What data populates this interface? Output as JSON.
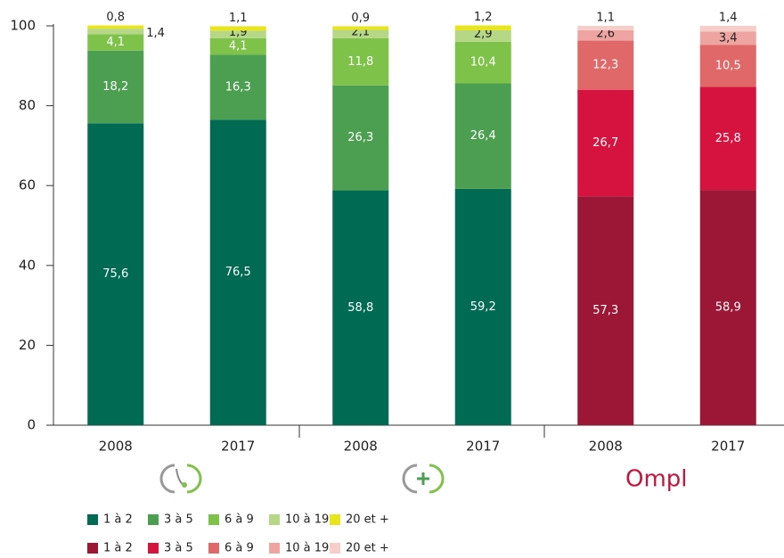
{
  "chart_data": {
    "type": "stacked_bar",
    "categories": [
      "2008",
      "2017",
      "2008",
      "2017",
      "2008",
      "2017"
    ],
    "logo": "Ompl",
    "ylim": [
      0,
      100
    ],
    "yticks": [
      0,
      20,
      40,
      60,
      80,
      100
    ],
    "series": [
      {
        "name": "1 à 2",
        "color": "#006b52",
        "values": [
          75.6,
          76.5,
          58.8,
          59.2,
          null,
          null
        ],
        "value_labels": [
          "75,6",
          "76,5",
          "58,8",
          "59,2",
          null,
          null
        ]
      },
      {
        "name": "3 à 5",
        "color": "#4c9f50",
        "values": [
          18.2,
          16.3,
          26.3,
          26.4,
          null,
          null
        ],
        "value_labels": [
          "18,2",
          "16,3",
          "26,3",
          "26,4",
          null,
          null
        ]
      },
      {
        "name": "6 à 9",
        "color": "#7fc24a",
        "values": [
          4.1,
          4.1,
          11.8,
          10.4,
          null,
          null
        ],
        "value_labels": [
          "4,1",
          "4,1",
          "11,8",
          "10,4",
          null,
          null
        ]
      },
      {
        "name": "10 à 19",
        "color": "#b6d886",
        "values": [
          1.4,
          1.9,
          2.1,
          2.9,
          null,
          null
        ],
        "value_labels": [
          "1,4",
          "1,9",
          "2,1",
          "2,9",
          null,
          null
        ]
      },
      {
        "name": "20 et +",
        "color": "#e8e51c",
        "values": [
          0.8,
          1.1,
          0.9,
          1.2,
          null,
          null
        ],
        "value_labels": [
          "0,8",
          "1,1",
          "0,9",
          "1,2",
          null,
          null
        ]
      },
      {
        "name": "1 à 2",
        "color": "#9c1636",
        "values": [
          null,
          null,
          null,
          null,
          57.3,
          58.9
        ],
        "value_labels": [
          null,
          null,
          null,
          null,
          "57,3",
          "58,9"
        ]
      },
      {
        "name": "3 à 5",
        "color": "#d6123f",
        "values": [
          null,
          null,
          null,
          null,
          26.7,
          25.8
        ],
        "value_labels": [
          null,
          null,
          null,
          null,
          "26,7",
          "25,8"
        ]
      },
      {
        "name": "6 à 9",
        "color": "#e06868",
        "values": [
          null,
          null,
          null,
          null,
          12.3,
          10.5
        ],
        "value_labels": [
          null,
          null,
          null,
          null,
          "12,3",
          "10,5"
        ]
      },
      {
        "name": "10 à 19",
        "color": "#eea4a0",
        "values": [
          null,
          null,
          null,
          null,
          2.6,
          3.4
        ],
        "value_labels": [
          null,
          null,
          null,
          null,
          "2,6",
          "3,4"
        ]
      },
      {
        "name": "20 et +",
        "color": "#f7cdca",
        "values": [
          null,
          null,
          null,
          null,
          1.1,
          1.4
        ],
        "value_labels": [
          null,
          null,
          null,
          null,
          "1,1",
          "1,4"
        ]
      }
    ]
  }
}
